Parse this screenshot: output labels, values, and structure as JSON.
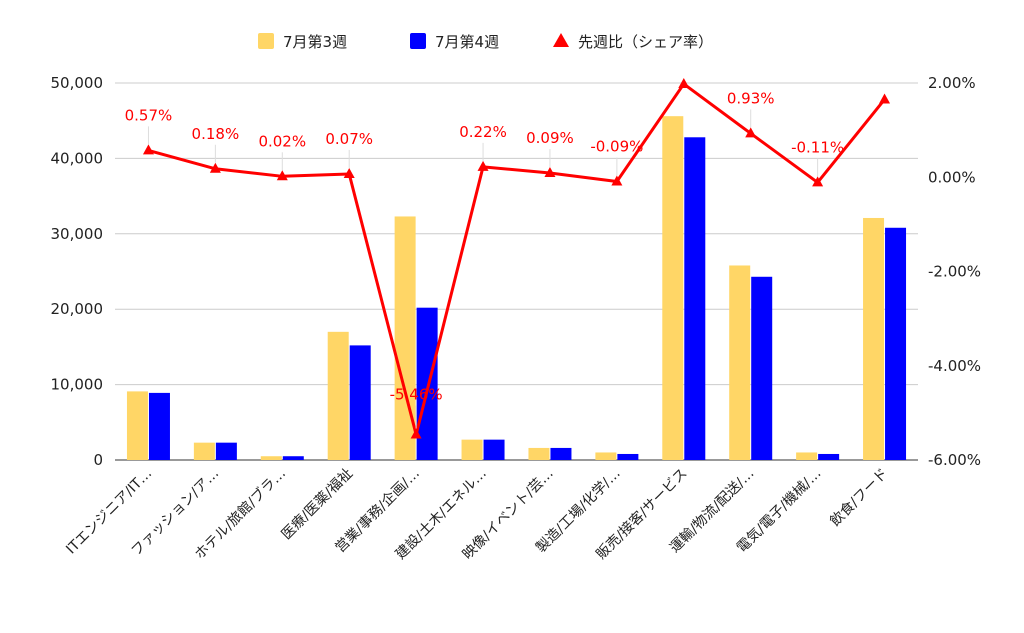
{
  "chart_data": {
    "type": "bar",
    "categories": [
      "ITエンジニア/IT…",
      "ファッション/ア…",
      "ホテル/旅館/ブラ…",
      "医療/医薬/福祉",
      "営業/事務/企画/…",
      "建設/土木/エネル…",
      "映像/イベント/芸…",
      "製造/工場/化学/…",
      "販売/接客/サービス",
      "運輸/物流/配送/…",
      "電気/電子/機械/…",
      "飲食/フード"
    ],
    "series": [
      {
        "name": "7月第3週",
        "type": "bar",
        "axis": "left",
        "color": "#ffd666",
        "values": [
          9100,
          2300,
          500,
          17000,
          32300,
          2700,
          1600,
          1000,
          45600,
          25800,
          1000,
          32100
        ]
      },
      {
        "name": "7月第4週",
        "type": "bar",
        "axis": "left",
        "color": "#0000ff",
        "values": [
          8900,
          2300,
          500,
          15200,
          20200,
          2700,
          1600,
          800,
          42800,
          24300,
          800,
          30800
        ]
      },
      {
        "name": "先週比（シェア率）",
        "type": "line",
        "axis": "right",
        "color": "#ff0000",
        "values": [
          0.57,
          0.18,
          0.02,
          0.07,
          -5.46,
          0.22,
          0.09,
          -0.09,
          1.98,
          0.93,
          -0.11,
          1.65
        ],
        "data_labels": [
          "0.57%",
          "0.18%",
          "0.02%",
          "0.07%",
          "-5.46%",
          "0.22%",
          "0.09%",
          "-0.09%",
          "",
          "0.93%",
          "-0.11%",
          ""
        ]
      }
    ],
    "y_left": {
      "ylim": [
        0,
        50000
      ],
      "ticks": [
        0,
        10000,
        20000,
        30000,
        40000,
        50000
      ],
      "tick_labels": [
        "0",
        "10,000",
        "20,000",
        "30,000",
        "40,000",
        "50,000"
      ]
    },
    "y_right": {
      "ylim": [
        -6,
        2
      ],
      "ticks": [
        -6,
        -4,
        -2,
        0,
        2
      ],
      "tick_labels": [
        "-6.00%",
        "-4.00%",
        "-2.00%",
        "0.00%",
        "2.00%"
      ]
    },
    "legend_position": "top",
    "grid": true,
    "title": "",
    "xlabel": "",
    "ylabel": ""
  }
}
